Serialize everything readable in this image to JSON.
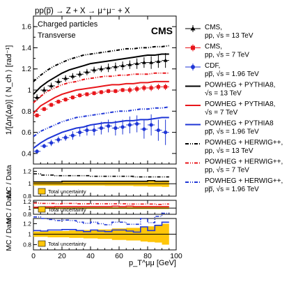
{
  "chart_data": {
    "type": "line",
    "process_label": "pp(p̅) → Z + X → μ⁺μ⁻ + X",
    "region_line1": "Charged particles",
    "region_line2": "Transverse",
    "experiment": "CMS",
    "ylabel": "1/[Δη(Δφ)] ⟨ N_ch ⟩ [rad⁻¹]",
    "xlabel": "p_T^μμ [GeV]",
    "ratio_ylabel": "MC / Data",
    "uncertainty_label": "Total uncertainty",
    "xlim": [
      0,
      100
    ],
    "ylim": [
      0.3,
      1.7
    ],
    "x_ticks": [
      0,
      20,
      40,
      60,
      80,
      100
    ],
    "y_ticks": [
      0.4,
      0.6,
      0.8,
      1.0,
      1.2,
      1.4,
      1.6
    ],
    "ratio_panels": [
      {
        "ylim": [
          0.8,
          1.25
        ],
        "ticks": [
          0.8,
          1.0,
          1.2
        ],
        "tick_labels": [
          "0.8",
          "1",
          "1.2"
        ]
      },
      {
        "ylim": [
          0.8,
          1.25
        ],
        "ticks": [
          0.8,
          1.0,
          1.2
        ],
        "tick_labels": [
          "0.8",
          "1",
          "1.2"
        ]
      },
      {
        "ylim": [
          0.7,
          1.3
        ],
        "ticks": [
          0.8,
          1.0,
          1.2
        ],
        "tick_labels": [
          "0.8",
          "1",
          "1.2"
        ]
      }
    ],
    "legend": [
      {
        "key": "cms13",
        "l1": "CMS,",
        "l2": "pp, √s = 13 TeV",
        "color": "#000000",
        "marker": "triangle",
        "dash": ""
      },
      {
        "key": "cms7",
        "l1": "CMS,",
        "l2": "pp, √s = 7 TeV",
        "color": "#e8161b",
        "marker": "square",
        "dash": ""
      },
      {
        "key": "cdf",
        "l1": "CDF,",
        "l2": "pp̅, √s = 1.96 TeV",
        "color": "#1f36d6",
        "marker": "circle",
        "dash": ""
      },
      {
        "key": "py13",
        "l1": "POWHEG + PYTHIA8,",
        "l2": "√s = 13 TeV",
        "color": "#000000",
        "marker": "",
        "dash": ""
      },
      {
        "key": "py7",
        "l1": "POWHEG + PYTHIA8,",
        "l2": "√s = 7 TeV",
        "color": "#e8161b",
        "marker": "",
        "dash": ""
      },
      {
        "key": "py196",
        "l1": "POWHEG + PYTHIA8",
        "l2": "pp̅, √s = 1.96 TeV",
        "color": "#1f36d6",
        "marker": "",
        "dash": ""
      },
      {
        "key": "hw13",
        "l1": "POWHEG + HERWIG++,",
        "l2": "pp, √s = 13 TeV",
        "color": "#000000",
        "marker": "",
        "dash": "5,2,1,2,1,2"
      },
      {
        "key": "hw7",
        "l1": "POWHEG + HERWIG++,",
        "l2": "pp, √s = 7 TeV",
        "color": "#e8161b",
        "marker": "",
        "dash": "5,2,1,2,1,2"
      },
      {
        "key": "hw196",
        "l1": "POWHEG + HERWIG++,",
        "l2": "pp̅, √s = 1.96 TeV",
        "color": "#1f36d6",
        "marker": "",
        "dash": "5,2,1,2,1,2"
      }
    ],
    "cms13": {
      "x": [
        2.5,
        7.5,
        12.5,
        17.5,
        22.5,
        27.5,
        32.5,
        37.5,
        42.5,
        47.5,
        52.5,
        57.5,
        62.5,
        67.5,
        72.5,
        77.5,
        82.5,
        87.5,
        92.5
      ],
      "y": [
        0.93,
        1.0,
        1.04,
        1.08,
        1.11,
        1.13,
        1.15,
        1.17,
        1.19,
        1.2,
        1.21,
        1.22,
        1.23,
        1.24,
        1.25,
        1.26,
        1.26,
        1.27,
        1.28
      ],
      "err": [
        0.03,
        0.03,
        0.03,
        0.03,
        0.03,
        0.03,
        0.03,
        0.03,
        0.03,
        0.03,
        0.04,
        0.04,
        0.04,
        0.04,
        0.05,
        0.05,
        0.06,
        0.06,
        0.07
      ]
    },
    "cms7": {
      "x": [
        2.5,
        7.5,
        12.5,
        17.5,
        22.5,
        27.5,
        32.5,
        37.5,
        42.5,
        47.5,
        52.5,
        57.5,
        62.5,
        67.5,
        72.5,
        77.5,
        82.5,
        87.5,
        92.5
      ],
      "y": [
        0.76,
        0.82,
        0.86,
        0.89,
        0.91,
        0.93,
        0.95,
        0.96,
        0.97,
        0.98,
        0.99,
        0.99,
        1.0,
        1.0,
        1.01,
        1.02,
        1.02,
        1.03,
        1.03
      ],
      "err": [
        0.02,
        0.02,
        0.02,
        0.02,
        0.02,
        0.02,
        0.02,
        0.02,
        0.02,
        0.02,
        0.02,
        0.02,
        0.02,
        0.03,
        0.03,
        0.03,
        0.03,
        0.03,
        0.03
      ]
    },
    "cdf": {
      "x": [
        2.5,
        7.5,
        12.5,
        17.5,
        22.5,
        27.5,
        32.5,
        37.5,
        42.5,
        47.5,
        52.5,
        57.5,
        62.5,
        67.5,
        72.5,
        77.5,
        82.5,
        87.5,
        92.5
      ],
      "y": [
        0.42,
        0.47,
        0.5,
        0.53,
        0.55,
        0.57,
        0.6,
        0.62,
        0.62,
        0.64,
        0.66,
        0.64,
        0.65,
        0.67,
        0.68,
        0.63,
        0.67,
        0.62,
        0.6
      ],
      "err": [
        0.02,
        0.02,
        0.03,
        0.03,
        0.03,
        0.04,
        0.04,
        0.05,
        0.05,
        0.06,
        0.06,
        0.07,
        0.07,
        0.08,
        0.08,
        0.09,
        0.1,
        0.1,
        0.12
      ]
    },
    "py13": {
      "x": [
        0,
        5,
        10,
        15,
        20,
        25,
        30,
        35,
        40,
        45,
        50,
        55,
        60,
        65,
        70,
        75,
        80,
        85,
        90,
        95
      ],
      "y": [
        0.96,
        1.03,
        1.08,
        1.12,
        1.16,
        1.19,
        1.21,
        1.23,
        1.25,
        1.26,
        1.27,
        1.28,
        1.29,
        1.3,
        1.31,
        1.32,
        1.33,
        1.33,
        1.34,
        1.34
      ]
    },
    "py7": {
      "x": [
        0,
        5,
        10,
        15,
        20,
        25,
        30,
        35,
        40,
        45,
        50,
        55,
        60,
        65,
        70,
        75,
        80,
        85,
        90,
        95
      ],
      "y": [
        0.78,
        0.85,
        0.89,
        0.93,
        0.96,
        0.98,
        1.0,
        1.01,
        1.02,
        1.03,
        1.04,
        1.05,
        1.05,
        1.06,
        1.06,
        1.07,
        1.07,
        1.08,
        1.08,
        1.08
      ]
    },
    "py196": {
      "x": [
        0,
        5,
        10,
        15,
        20,
        25,
        30,
        35,
        40,
        45,
        50,
        55,
        60,
        65,
        70,
        75,
        80,
        85,
        90,
        95
      ],
      "y": [
        0.45,
        0.5,
        0.54,
        0.57,
        0.6,
        0.62,
        0.64,
        0.65,
        0.67,
        0.68,
        0.69,
        0.69,
        0.7,
        0.71,
        0.71,
        0.72,
        0.72,
        0.73,
        0.74,
        0.74
      ]
    },
    "hw13": {
      "x": [
        0,
        5,
        10,
        15,
        20,
        25,
        30,
        35,
        40,
        45,
        50,
        55,
        60,
        65,
        70,
        75,
        80,
        85,
        90,
        95
      ],
      "y": [
        1.08,
        1.14,
        1.19,
        1.23,
        1.26,
        1.29,
        1.31,
        1.33,
        1.34,
        1.35,
        1.36,
        1.37,
        1.38,
        1.39,
        1.39,
        1.4,
        1.4,
        1.41,
        1.41,
        1.42
      ]
    },
    "hw7": {
      "x": [
        0,
        5,
        10,
        15,
        20,
        25,
        30,
        35,
        40,
        45,
        50,
        55,
        60,
        65,
        70,
        75,
        80,
        85,
        90,
        95
      ],
      "y": [
        0.88,
        0.94,
        0.99,
        1.02,
        1.05,
        1.07,
        1.08,
        1.1,
        1.11,
        1.12,
        1.13,
        1.13,
        1.14,
        1.14,
        1.15,
        1.15,
        1.15,
        1.16,
        1.16,
        1.16
      ]
    },
    "hw196": {
      "x": [
        0,
        5,
        10,
        15,
        20,
        25,
        30,
        35,
        40,
        45,
        50,
        55,
        60,
        65,
        70,
        75,
        80,
        85,
        90,
        95
      ],
      "y": [
        0.56,
        0.61,
        0.64,
        0.67,
        0.7,
        0.72,
        0.74,
        0.75,
        0.76,
        0.77,
        0.78,
        0.79,
        0.8,
        0.8,
        0.81,
        0.82,
        0.82,
        0.83,
        0.83,
        0.84
      ]
    },
    "ratio13": {
      "x": [
        2.5,
        7.5,
        12.5,
        17.5,
        22.5,
        27.5,
        32.5,
        37.5,
        42.5,
        47.5,
        52.5,
        57.5,
        62.5,
        67.5,
        72.5,
        77.5,
        82.5,
        87.5,
        92.5
      ],
      "unc": [
        0.03,
        0.03,
        0.03,
        0.03,
        0.03,
        0.03,
        0.03,
        0.03,
        0.03,
        0.03,
        0.035,
        0.035,
        0.035,
        0.035,
        0.04,
        0.04,
        0.045,
        0.045,
        0.05
      ],
      "py": [
        1.03,
        1.03,
        1.03,
        1.03,
        1.04,
        1.04,
        1.04,
        1.04,
        1.04,
        1.04,
        1.04,
        1.04,
        1.04,
        1.04,
        1.04,
        1.04,
        1.05,
        1.04,
        1.04
      ],
      "hw": [
        1.16,
        1.14,
        1.14,
        1.13,
        1.13,
        1.13,
        1.13,
        1.13,
        1.12,
        1.12,
        1.12,
        1.12,
        1.12,
        1.12,
        1.11,
        1.11,
        1.11,
        1.11,
        1.11
      ]
    },
    "ratio7": {
      "x": [
        2.5,
        7.5,
        12.5,
        17.5,
        22.5,
        27.5,
        32.5,
        37.5,
        42.5,
        47.5,
        52.5,
        57.5,
        62.5,
        67.5,
        72.5,
        77.5,
        82.5,
        87.5,
        92.5
      ],
      "unc": [
        0.025,
        0.025,
        0.025,
        0.025,
        0.025,
        0.025,
        0.025,
        0.025,
        0.025,
        0.025,
        0.025,
        0.025,
        0.025,
        0.03,
        0.03,
        0.03,
        0.03,
        0.03,
        0.03
      ],
      "py": [
        1.03,
        1.04,
        1.04,
        1.05,
        1.05,
        1.05,
        1.05,
        1.05,
        1.05,
        1.05,
        1.05,
        1.06,
        1.05,
        1.06,
        1.05,
        1.05,
        1.05,
        1.05,
        1.05
      ],
      "hw": [
        1.16,
        1.15,
        1.15,
        1.14,
        1.15,
        1.15,
        1.14,
        1.14,
        1.14,
        1.14,
        1.14,
        1.14,
        1.14,
        1.13,
        1.13,
        1.13,
        1.13,
        1.12,
        1.13
      ]
    },
    "ratio196": {
      "x": [
        2.5,
        7.5,
        12.5,
        17.5,
        22.5,
        27.5,
        32.5,
        37.5,
        42.5,
        47.5,
        52.5,
        57.5,
        62.5,
        67.5,
        72.5,
        77.5,
        82.5,
        87.5,
        92.5
      ],
      "unc": [
        0.05,
        0.05,
        0.06,
        0.06,
        0.06,
        0.07,
        0.07,
        0.08,
        0.08,
        0.09,
        0.09,
        0.11,
        0.11,
        0.12,
        0.12,
        0.14,
        0.15,
        0.16,
        0.2
      ],
      "py": [
        1.07,
        1.06,
        1.08,
        1.08,
        1.09,
        1.09,
        1.07,
        1.05,
        1.08,
        1.06,
        1.05,
        1.08,
        1.08,
        1.06,
        1.04,
        1.14,
        1.07,
        1.17,
        1.23
      ],
      "hw": [
        1.33,
        1.3,
        1.28,
        1.26,
        1.27,
        1.26,
        1.23,
        1.21,
        1.23,
        1.2,
        1.18,
        1.23,
        1.23,
        1.19,
        1.19,
        1.3,
        1.22,
        1.34,
        1.4
      ]
    }
  }
}
